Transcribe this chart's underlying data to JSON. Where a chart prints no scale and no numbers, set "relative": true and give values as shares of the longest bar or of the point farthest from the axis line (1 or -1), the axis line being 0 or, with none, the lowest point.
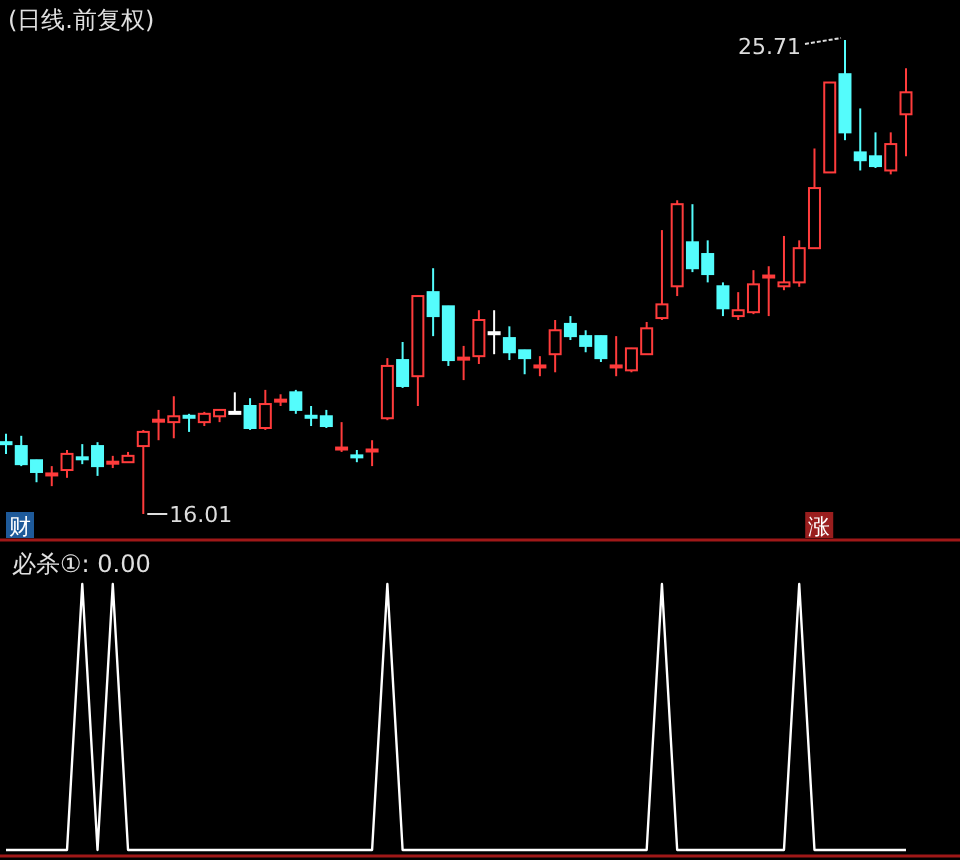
{
  "chart_data": [
    {
      "type": "candlestick",
      "title": "(日线.前复权)",
      "categories": [
        null,
        null,
        null,
        null,
        null,
        null,
        null,
        null,
        null,
        null,
        null,
        null,
        null,
        null,
        null,
        null,
        null,
        null,
        null,
        null,
        null,
        null,
        null,
        null,
        null,
        null,
        null,
        null,
        null,
        null,
        null,
        null,
        null,
        null,
        null,
        null,
        null,
        null,
        null,
        null,
        null,
        null,
        null,
        null,
        null,
        null,
        null,
        null,
        null,
        null,
        null,
        null,
        null,
        null,
        null,
        null,
        null,
        null,
        null,
        null
      ],
      "ohlc": [
        [
          17.48,
          17.65,
          17.24,
          17.47
        ],
        [
          17.4,
          17.61,
          16.99,
          17.03
        ],
        [
          17.11,
          17.12,
          16.66,
          16.87
        ],
        [
          16.82,
          16.99,
          16.58,
          16.84
        ],
        [
          16.91,
          17.32,
          16.75,
          17.24
        ],
        [
          17.17,
          17.44,
          17.03,
          17.15
        ],
        [
          17.4,
          17.48,
          16.79,
          16.99
        ],
        [
          17.06,
          17.2,
          16.95,
          17.08
        ],
        [
          17.07,
          17.28,
          17.06,
          17.2
        ],
        [
          17.4,
          17.73,
          16.01,
          17.69
        ],
        [
          17.92,
          18.14,
          17.52,
          17.94
        ],
        [
          17.89,
          18.42,
          17.56,
          18.01
        ],
        [
          18.02,
          18.06,
          17.69,
          18.0
        ],
        [
          17.89,
          18.1,
          17.81,
          18.06
        ],
        [
          18.01,
          18.15,
          17.89,
          18.14
        ],
        [
          18.1,
          18.5,
          18.06,
          18.1
        ],
        [
          18.22,
          18.38,
          17.73,
          17.77
        ],
        [
          17.77,
          18.55,
          17.73,
          18.26
        ],
        [
          18.33,
          18.46,
          18.22,
          18.35
        ],
        [
          18.5,
          18.55,
          18.06,
          18.14
        ],
        [
          18.02,
          18.22,
          17.81,
          18.0
        ],
        [
          18.01,
          18.14,
          17.77,
          17.81
        ],
        [
          17.35,
          17.89,
          17.28,
          17.37
        ],
        [
          17.21,
          17.32,
          17.07,
          17.19
        ],
        [
          17.31,
          17.52,
          16.99,
          17.33
        ],
        [
          17.97,
          19.2,
          17.93,
          19.04
        ],
        [
          19.16,
          19.53,
          18.59,
          18.63
        ],
        [
          18.83,
          20.48,
          18.22,
          20.47
        ],
        [
          20.55,
          21.04,
          19.65,
          20.06
        ],
        [
          20.26,
          20.27,
          19.04,
          19.16
        ],
        [
          19.19,
          19.45,
          18.75,
          19.21
        ],
        [
          19.24,
          20.18,
          19.08,
          19.98
        ],
        [
          19.73,
          20.18,
          19.28,
          19.73
        ],
        [
          19.61,
          19.85,
          19.16,
          19.32
        ],
        [
          19.36,
          19.37,
          18.87,
          19.2
        ],
        [
          19.03,
          19.24,
          18.83,
          19.05
        ],
        [
          19.28,
          19.98,
          18.91,
          19.77
        ],
        [
          19.9,
          20.06,
          19.57,
          19.65
        ],
        [
          19.65,
          19.77,
          19.32,
          19.45
        ],
        [
          19.65,
          19.66,
          19.12,
          19.2
        ],
        [
          19.03,
          19.65,
          18.83,
          19.05
        ],
        [
          18.95,
          19.41,
          18.91,
          19.4
        ],
        [
          19.28,
          19.94,
          19.27,
          19.81
        ],
        [
          20.02,
          21.82,
          19.98,
          20.3
        ],
        [
          20.67,
          22.43,
          20.47,
          22.35
        ],
        [
          21.57,
          22.35,
          20.96,
          21.04
        ],
        [
          21.33,
          21.61,
          20.75,
          20.92
        ],
        [
          20.67,
          20.75,
          20.06,
          20.22
        ],
        [
          20.06,
          20.55,
          19.98,
          20.18
        ],
        [
          20.14,
          21.0,
          20.1,
          20.71
        ],
        [
          20.87,
          21.08,
          20.06,
          20.89
        ],
        [
          20.67,
          21.7,
          20.59,
          20.75
        ],
        [
          20.75,
          21.61,
          20.66,
          21.45
        ],
        [
          21.45,
          23.49,
          21.44,
          22.68
        ],
        [
          23.0,
          24.85,
          22.99,
          24.84
        ],
        [
          25.01,
          25.71,
          23.66,
          23.82
        ],
        [
          23.41,
          24.31,
          23.04,
          23.25
        ],
        [
          23.33,
          23.82,
          23.09,
          23.13
        ],
        [
          23.04,
          23.82,
          22.96,
          23.58
        ],
        [
          24.19,
          25.13,
          23.33,
          24.64
        ]
      ],
      "annotations": [
        "25.71",
        "16.01",
        "财",
        "涨"
      ]
    },
    {
      "type": "line",
      "title": "必杀①: 0.00",
      "relative": true,
      "categories": [
        null,
        null,
        null,
        null,
        null,
        null,
        null,
        null,
        null,
        null,
        null,
        null,
        null,
        null,
        null,
        null,
        null,
        null,
        null,
        null,
        null,
        null,
        null,
        null,
        null,
        null,
        null,
        null,
        null,
        null,
        null,
        null,
        null,
        null,
        null,
        null,
        null,
        null,
        null,
        null,
        null,
        null,
        null,
        null,
        null,
        null,
        null,
        null,
        null,
        null,
        null,
        null,
        null,
        null,
        null,
        null,
        null,
        null,
        null,
        null
      ],
      "series": [
        {
          "color": "#ffffff",
          "values": [
            0,
            0,
            0,
            0,
            0,
            1,
            0,
            1,
            0,
            0,
            0,
            0,
            0,
            0,
            0,
            0,
            0,
            0,
            0,
            0,
            0,
            0,
            0,
            0,
            0,
            1,
            0,
            0,
            0,
            0,
            0,
            0,
            0,
            0,
            0,
            0,
            0,
            0,
            0,
            0,
            0,
            0,
            0,
            1,
            0,
            0,
            0,
            0,
            0,
            0,
            0,
            0,
            1,
            0,
            0,
            0,
            0,
            0,
            0,
            0
          ]
        }
      ]
    }
  ]
}
